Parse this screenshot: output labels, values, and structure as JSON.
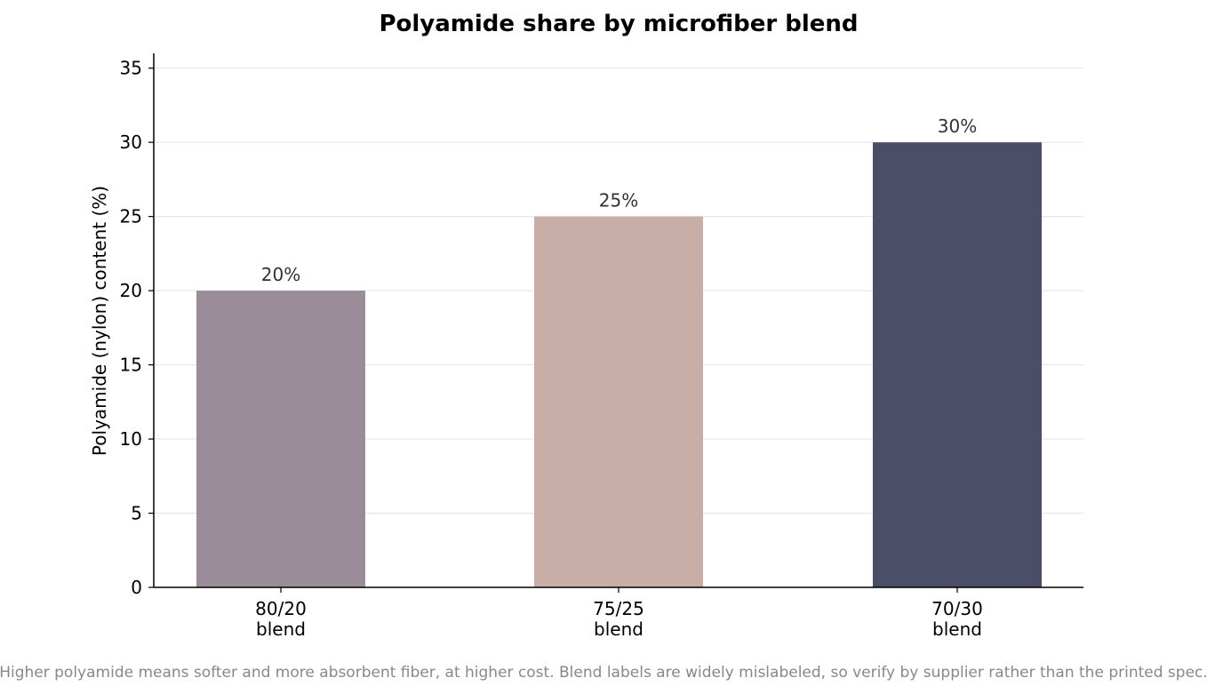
{
  "chart_data": {
    "type": "bar",
    "title": "Polyamide share by microfiber blend",
    "xlabel": "",
    "ylabel": "Polyamide (nylon) content (%)",
    "categories": [
      [
        "80/20",
        "blend"
      ],
      [
        "75/25",
        "blend"
      ],
      [
        "70/30",
        "blend"
      ]
    ],
    "values": [
      20,
      25,
      30
    ],
    "data_labels": [
      "20%",
      "25%",
      "30%"
    ],
    "colors": [
      "#9a8c98",
      "#c9ada7",
      "#4a4e69"
    ],
    "ylim": [
      0,
      36
    ],
    "yticks": [
      0,
      5,
      10,
      15,
      20,
      25,
      30,
      35
    ],
    "grid": "horizontal",
    "legend": "none"
  },
  "footnote": "Higher polyamide means softer and more absorbent fiber, at higher cost. Blend labels are widely mislabeled, so verify by supplier rather than the printed spec."
}
